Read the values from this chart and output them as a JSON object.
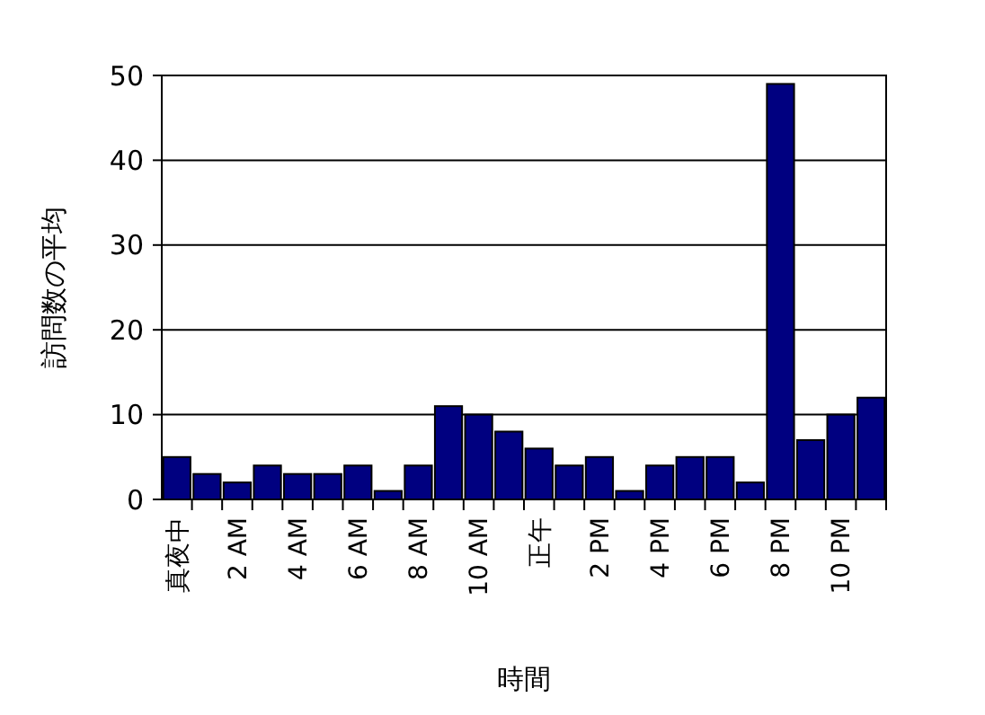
{
  "chart_data": {
    "type": "bar",
    "xlabel": "時間",
    "ylabel": "訪問数の平均",
    "categories": [
      "真夜中",
      null,
      "2 AM",
      null,
      "4 AM",
      null,
      "6 AM",
      null,
      "8 AM",
      null,
      "10 AM",
      null,
      "正午",
      null,
      "2 PM",
      null,
      "4 PM",
      null,
      "6 PM",
      null,
      "8 PM",
      null,
      "10 PM",
      null
    ],
    "values": [
      5,
      3,
      2,
      4,
      3,
      3,
      4,
      1,
      4,
      11,
      10,
      8,
      6,
      4,
      5,
      1,
      4,
      5,
      5,
      2,
      49,
      7,
      10,
      12
    ],
    "color": "#000080",
    "ylim": [
      0,
      50
    ],
    "yticks": [
      0,
      10,
      20,
      30,
      40,
      50
    ],
    "grid": "y"
  }
}
